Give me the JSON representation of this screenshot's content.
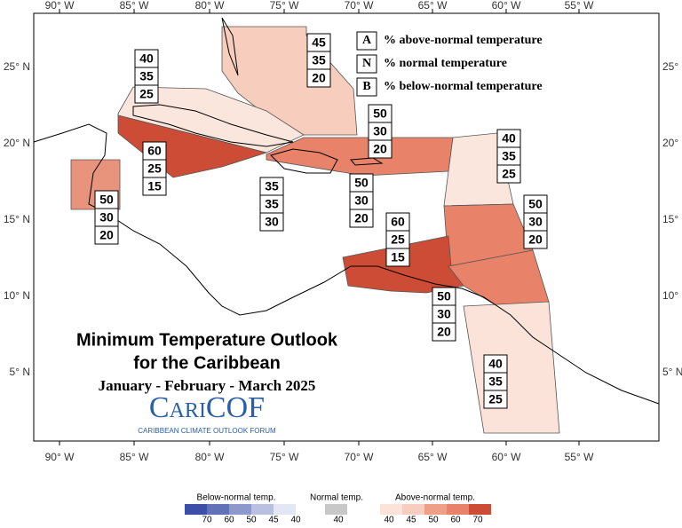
{
  "map": {
    "title_lines": [
      "Minimum Temperature Outlook",
      "for the Caribbean"
    ],
    "period": "January - February - March 2025",
    "logo": "CariCOF",
    "logo_subtitle": "CARIBBEAN CLIMATE OUTLOOK FORUM",
    "key": [
      {
        "letter": "A",
        "text": "% above-normal temperature"
      },
      {
        "letter": "N",
        "text": "% normal temperature"
      },
      {
        "letter": "B",
        "text": "% below-normal temperature"
      }
    ],
    "longitude_labels": [
      "90° W",
      "85° W",
      "80° W",
      "75° W",
      "70° W",
      "65° W",
      "60° W",
      "55° W"
    ],
    "latitude_labels": [
      "25° N",
      "20° N",
      "15° N",
      "10° N",
      "5° N"
    ],
    "regions": [
      {
        "above": 45,
        "normal": 35,
        "below": 20
      },
      {
        "above": 40,
        "normal": 35,
        "below": 25
      },
      {
        "above": 60,
        "normal": 25,
        "below": 15
      },
      {
        "above": 50,
        "normal": 30,
        "below": 20
      },
      {
        "above": 35,
        "normal": 35,
        "below": 30
      },
      {
        "above": 50,
        "normal": 30,
        "below": 20
      },
      {
        "above": 50,
        "normal": 30,
        "below": 20
      },
      {
        "above": 40,
        "normal": 35,
        "below": 25
      },
      {
        "above": 50,
        "normal": 30,
        "below": 20
      },
      {
        "above": 60,
        "normal": 25,
        "below": 15
      },
      {
        "above": 50,
        "normal": 30,
        "below": 20
      },
      {
        "above": 40,
        "normal": 35,
        "below": 25
      }
    ]
  },
  "legend": {
    "below": {
      "label": "Below-normal temp.",
      "ticks": [
        70,
        60,
        50,
        45,
        40
      ]
    },
    "normal": {
      "label": "Normal temp.",
      "ticks": [
        40
      ]
    },
    "above": {
      "label": "Above-normal temp.",
      "ticks": [
        40,
        45,
        50,
        60,
        70
      ]
    }
  }
}
